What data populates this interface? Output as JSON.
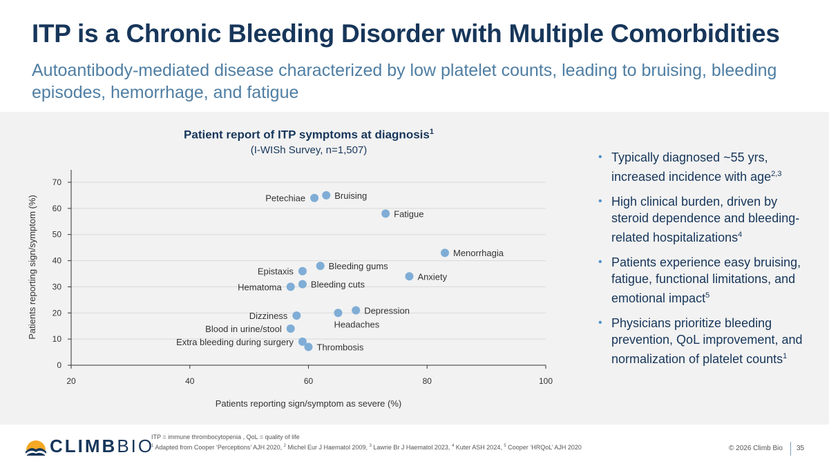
{
  "slide": {
    "title": "ITP is a Chronic Bleeding Disorder with Multiple Comorbidities",
    "subtitle": "Autoantibody-mediated disease characterized by low platelet counts, leading to bruising, bleeding episodes, hemorrhage, and fatigue"
  },
  "chart_data": {
    "type": "scatter",
    "title": "Patient report of ITP symptoms at diagnosis",
    "title_sup": "1",
    "subtitle": "(I-WISh Survey, n=1,507)",
    "xlabel": "Patients reporting sign/symptom as severe (%)",
    "ylabel": "Patients reporting sign/symptom (%)",
    "xlim": [
      20,
      100
    ],
    "ylim": [
      0,
      70
    ],
    "xticks": [
      20,
      40,
      60,
      80,
      100
    ],
    "yticks": [
      0,
      10,
      20,
      30,
      40,
      50,
      60,
      70
    ],
    "grid": "horizontal",
    "point_color": "#7fadd6",
    "points": [
      {
        "label": "Petechiae",
        "x": 61,
        "y": 64,
        "side": "left"
      },
      {
        "label": "Bruising",
        "x": 63,
        "y": 65,
        "side": "right"
      },
      {
        "label": "Fatigue",
        "x": 73,
        "y": 58,
        "side": "right"
      },
      {
        "label": "Menorrhagia",
        "x": 83,
        "y": 43,
        "side": "right"
      },
      {
        "label": "Bleeding gums",
        "x": 62,
        "y": 38,
        "side": "right"
      },
      {
        "label": "Epistaxis",
        "x": 59,
        "y": 36,
        "side": "left"
      },
      {
        "label": "Anxiety",
        "x": 77,
        "y": 34,
        "side": "right"
      },
      {
        "label": "Bleeding cuts",
        "x": 59,
        "y": 31,
        "side": "right"
      },
      {
        "label": "Hematoma",
        "x": 57,
        "y": 30,
        "side": "left"
      },
      {
        "label": "Depression",
        "x": 68,
        "y": 21,
        "side": "right"
      },
      {
        "label": "Headaches",
        "x": 65,
        "y": 20,
        "side": "below"
      },
      {
        "label": "Dizziness",
        "x": 58,
        "y": 19,
        "side": "left"
      },
      {
        "label": "Blood in urine/stool",
        "x": 57,
        "y": 14,
        "side": "left"
      },
      {
        "label": "Extra bleeding during surgery",
        "x": 59,
        "y": 9,
        "side": "left"
      },
      {
        "label": "Thrombosis",
        "x": 60,
        "y": 7,
        "side": "right"
      }
    ]
  },
  "bullets": [
    {
      "text": "Typically diagnosed ~55 yrs, increased incidence with age",
      "sup": "2,3"
    },
    {
      "text": "High clinical burden, driven by steroid dependence and bleeding-related hospitalizations",
      "sup": "4"
    },
    {
      "text": "Patients experience easy bruising, fatigue, functional limitations, and emotional impact",
      "sup": "5"
    },
    {
      "text": "Physicians prioritize bleeding prevention, QoL improvement, and normalization of platelet counts",
      "sup": "1"
    }
  ],
  "footer": {
    "logo_left": "CLIMB",
    "logo_right": "BIO",
    "abbrev": "ITP = immune thrombocytopenia , QoL = quality of life",
    "refs": [
      {
        "sup": "1",
        "text": " Adapted from Cooper ‘Perceptions’ AJH 2020, "
      },
      {
        "sup": "2",
        "text": " Michel Eur J Haematol 2009, "
      },
      {
        "sup": "3",
        "text": " Lawrie Br J Haematol 2023, "
      },
      {
        "sup": "4",
        "text": " Kuter ASH 2024, "
      },
      {
        "sup": "5",
        "text": " Cooper ‘HRQoL’ AJH 2020"
      }
    ],
    "copyright": "© 2026 Climb Bio",
    "page": "35"
  },
  "colors": {
    "title": "#17365a",
    "subtitle": "#4f7ea3",
    "panel": "#f2f2f2",
    "bullet_dot": "#4f8fc8"
  }
}
